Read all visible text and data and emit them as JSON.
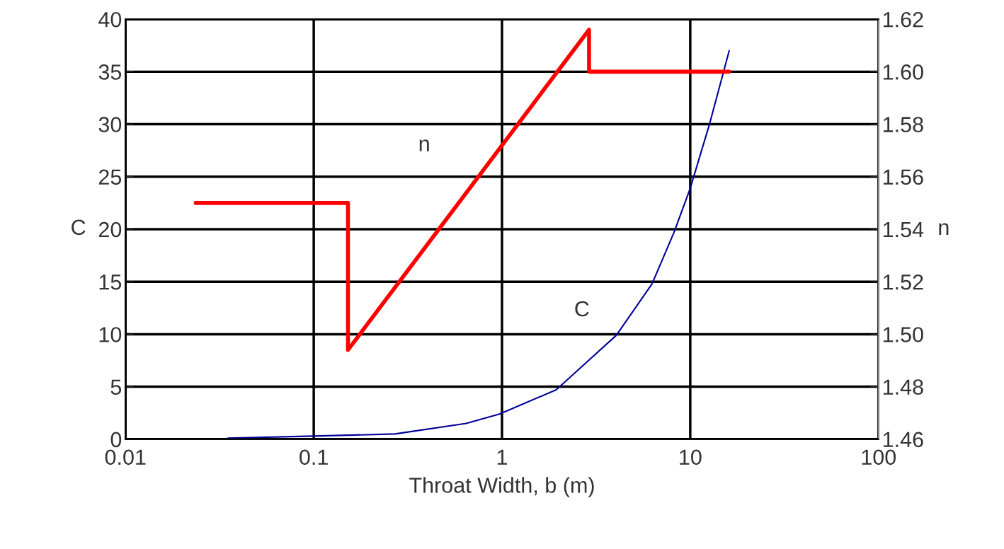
{
  "chart_data": {
    "type": "line",
    "xlabel": "Throat Width, b (m)",
    "ylabel": "C",
    "y2label": "n",
    "log": "x",
    "grid": true,
    "marker": "none",
    "line_style": "solid",
    "xlim": [
      0.01,
      100
    ],
    "xticks": [
      0.01,
      0.1,
      1,
      10,
      100
    ],
    "ylim": [
      0,
      40
    ],
    "yticks": [
      0,
      5,
      10,
      15,
      20,
      25,
      30,
      35,
      40
    ],
    "y2lim": [
      1.46,
      1.62
    ],
    "y2ticks": [
      {
        "value": 1.46,
        "label": "1.46"
      },
      {
        "value": 1.48,
        "label": "1.48"
      },
      {
        "value": 1.5,
        "label": "1.50"
      },
      {
        "value": 1.52,
        "label": "1.52"
      },
      {
        "value": 1.54,
        "label": "1.54"
      },
      {
        "value": 1.56,
        "label": "1.56"
      },
      {
        "value": 1.58,
        "label": "1.58"
      },
      {
        "value": 1.6,
        "label": "1.60"
      },
      {
        "value": 1.62,
        "label": "1.62"
      }
    ],
    "series": [
      {
        "name": "n",
        "color": "#ff0000",
        "axis": "y2",
        "x": [
          0.0236,
          0.152,
          0.152,
          2.9,
          2.9,
          16.1
        ],
        "values": [
          1.55,
          1.55,
          1.494,
          1.616,
          1.6,
          1.6
        ]
      },
      {
        "name": "C",
        "color": "#000099",
        "axis": "y",
        "x": [
          0.035,
          0.1,
          0.27,
          0.645,
          0.97,
          1.94,
          4.05,
          6.27,
          8.2,
          10,
          12.7,
          16.1
        ],
        "values": [
          0.1,
          0.3,
          0.5,
          1.5,
          2.4,
          4.7,
          9.9,
          14.8,
          19.7,
          23.9,
          30.1,
          37
        ]
      }
    ]
  }
}
